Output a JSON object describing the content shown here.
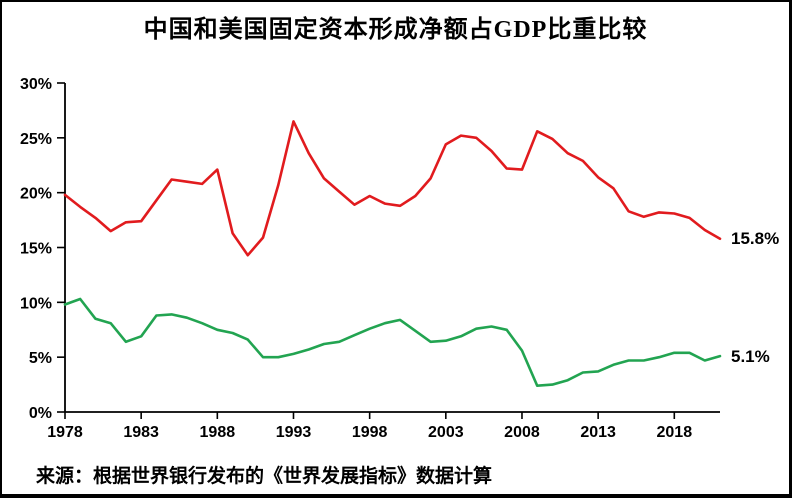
{
  "chart_data": {
    "type": "line",
    "title": "中国和美国固定资本形成净额占GDP比重比较",
    "x": [
      1978,
      1979,
      1980,
      1981,
      1982,
      1983,
      1984,
      1985,
      1986,
      1987,
      1988,
      1989,
      1990,
      1991,
      1992,
      1993,
      1994,
      1995,
      1996,
      1997,
      1998,
      1999,
      2000,
      2001,
      2002,
      2003,
      2004,
      2005,
      2006,
      2007,
      2008,
      2009,
      2010,
      2011,
      2012,
      2013,
      2014,
      2015,
      2016,
      2017,
      2018,
      2019,
      2020,
      2021
    ],
    "series": [
      {
        "name": "red-line",
        "color": "#e11b1e",
        "end_label": "15.8%",
        "values": [
          19.8,
          18.7,
          17.7,
          16.5,
          17.3,
          17.4,
          19.3,
          21.2,
          21.0,
          20.8,
          22.1,
          16.3,
          14.3,
          15.9,
          20.7,
          26.5,
          23.6,
          21.3,
          20.1,
          18.9,
          19.7,
          19.0,
          18.8,
          19.7,
          21.3,
          24.4,
          25.2,
          25.0,
          23.8,
          22.2,
          22.1,
          25.6,
          24.9,
          23.6,
          22.9,
          21.4,
          20.4,
          18.3,
          17.8,
          18.2,
          18.1,
          17.7,
          16.6,
          15.8
        ]
      },
      {
        "name": "green-line",
        "color": "#22a451",
        "end_label": "5.1%",
        "values": [
          9.8,
          10.3,
          8.5,
          8.1,
          6.4,
          6.9,
          8.8,
          8.9,
          8.6,
          8.1,
          7.5,
          7.2,
          6.6,
          5.0,
          5.0,
          5.3,
          5.7,
          6.2,
          6.4,
          7.0,
          7.6,
          8.1,
          8.4,
          7.4,
          6.4,
          6.5,
          6.9,
          7.6,
          7.8,
          7.5,
          5.6,
          2.4,
          2.5,
          2.9,
          3.6,
          3.7,
          4.3,
          4.7,
          4.7,
          5.0,
          5.4,
          5.4,
          4.7,
          5.1
        ]
      }
    ],
    "xlabel": "",
    "ylabel": "",
    "ylim": [
      0,
      30
    ],
    "yticks": [
      "0%",
      "5%",
      "10%",
      "15%",
      "20%",
      "25%",
      "30%"
    ],
    "xticks": [
      1978,
      1983,
      1988,
      1993,
      1998,
      2003,
      2008,
      2013,
      2018
    ],
    "grid": false,
    "legend_position": "end-of-line labels"
  },
  "source_note": "来源：根据世界银行发布的《世界发展指标》数据计算"
}
